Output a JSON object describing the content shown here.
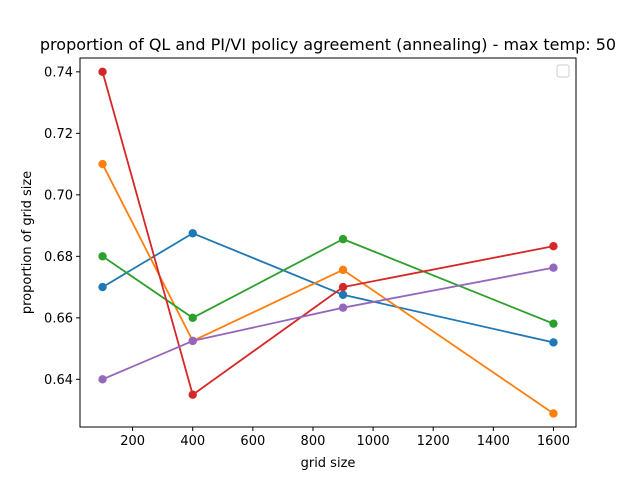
{
  "chart_data": {
    "type": "line",
    "title": "proportion of QL and PI/VI policy agreement (annealing) - max temp: 50",
    "xlabel": "grid size",
    "ylabel": "proportion of grid size",
    "x": [
      100,
      400,
      900,
      1600
    ],
    "xlim": [
      25,
      1675
    ],
    "ylim": [
      0.6245,
      0.7445
    ],
    "xticks": [
      200,
      400,
      600,
      800,
      1000,
      1200,
      1400,
      1600
    ],
    "xtick_labels": [
      "200",
      "400",
      "600",
      "800",
      "1000",
      "1200",
      "1400",
      "1600"
    ],
    "yticks": [
      0.64,
      0.66,
      0.68,
      0.7,
      0.72,
      0.74
    ],
    "ytick_labels": [
      "0.64",
      "0.66",
      "0.68",
      "0.70",
      "0.72",
      "0.74"
    ],
    "grid": false,
    "legend": "upper right (empty)",
    "series": [
      {
        "color": "#1f77b4",
        "values": [
          0.67,
          0.6875,
          0.6675,
          0.652
        ]
      },
      {
        "color": "#ff7f0e",
        "values": [
          0.71,
          0.6525,
          0.6756,
          0.6289
        ]
      },
      {
        "color": "#2ca02c",
        "values": [
          0.68,
          0.66,
          0.6856,
          0.6581
        ]
      },
      {
        "color": "#d62728",
        "values": [
          0.74,
          0.635,
          0.67,
          0.6833
        ]
      },
      {
        "color": "#9467bd",
        "values": [
          0.64,
          0.6525,
          0.6633,
          0.6763
        ]
      }
    ]
  }
}
